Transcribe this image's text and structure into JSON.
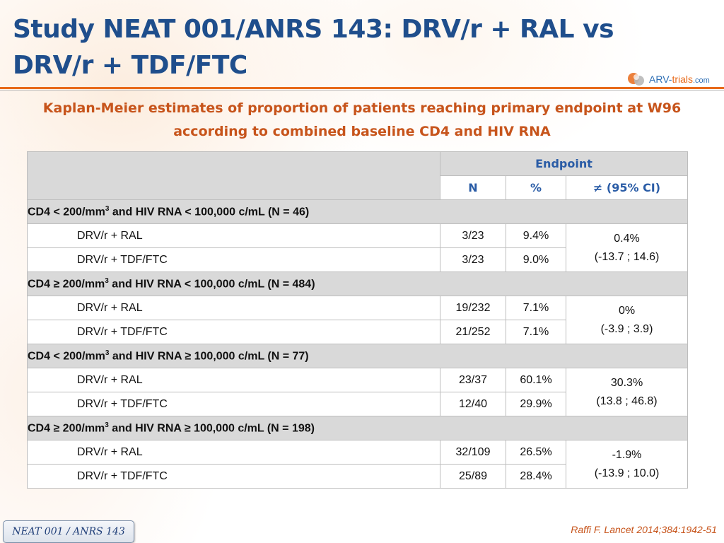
{
  "slide": {
    "title": "Study NEAT 001/ANRS 143: DRV/r + RAL vs DRV/r + TDF/FTC",
    "subtitle": "Kaplan-Meier estimates of proportion of patients reaching primary endpoint at W96 according to combined baseline CD4 and HIV RNA",
    "footer_tag": "NEAT 001 / ANRS 143",
    "reference": "Raffi F. Lancet 2014;384:1942-51"
  },
  "logo": {
    "part1": "ARV-",
    "part2": "trials",
    "part3": ".com"
  },
  "table": {
    "header": {
      "endpoint": "Endpoint",
      "n": "N",
      "pct": "%",
      "diff": "≠ (95% CI)"
    },
    "groups": [
      {
        "label_pre": "CD4 < 200/mm",
        "label_sup": "3",
        "label_post": " and HIV RNA < 100,000 c/mL (N = 46)",
        "diff": "0.4%",
        "ci": "(-13.7 ; 14.6)",
        "arms": [
          {
            "name": "DRV/r + RAL",
            "n": "3/23",
            "pct": "9.4%"
          },
          {
            "name": "DRV/r + TDF/FTC",
            "n": "3/23",
            "pct": "9.0%"
          }
        ]
      },
      {
        "label_pre": "CD4 ≥ 200/mm",
        "label_sup": "3",
        "label_post": " and HIV RNA < 100,000 c/mL (N = 484)",
        "diff": "0%",
        "ci": "(-3.9 ; 3.9)",
        "arms": [
          {
            "name": "DRV/r + RAL",
            "n": "19/232",
            "pct": "7.1%"
          },
          {
            "name": "DRV/r + TDF/FTC",
            "n": "21/252",
            "pct": "7.1%"
          }
        ]
      },
      {
        "label_pre": "CD4 < 200/mm",
        "label_sup": "3",
        "label_post": " and HIV RNA ≥ 100,000 c/mL (N = 77)",
        "diff": "30.3%",
        "ci": "(13.8 ; 46.8)",
        "arms": [
          {
            "name": "DRV/r + RAL",
            "n": "23/37",
            "pct": "60.1%"
          },
          {
            "name": "DRV/r + TDF/FTC",
            "n": "12/40",
            "pct": "29.9%"
          }
        ]
      },
      {
        "label_pre": "CD4 ≥ 200/mm",
        "label_sup": "3",
        "label_post": " and HIV RNA ≥ 100,000 c/mL (N = 198)",
        "diff": "-1.9%",
        "ci": "(-13.9 ; 10.0)",
        "arms": [
          {
            "name": "DRV/r + RAL",
            "n": "32/109",
            "pct": "26.5%"
          },
          {
            "name": "DRV/r + TDF/FTC",
            "n": "25/89",
            "pct": "28.4%"
          }
        ]
      }
    ]
  }
}
